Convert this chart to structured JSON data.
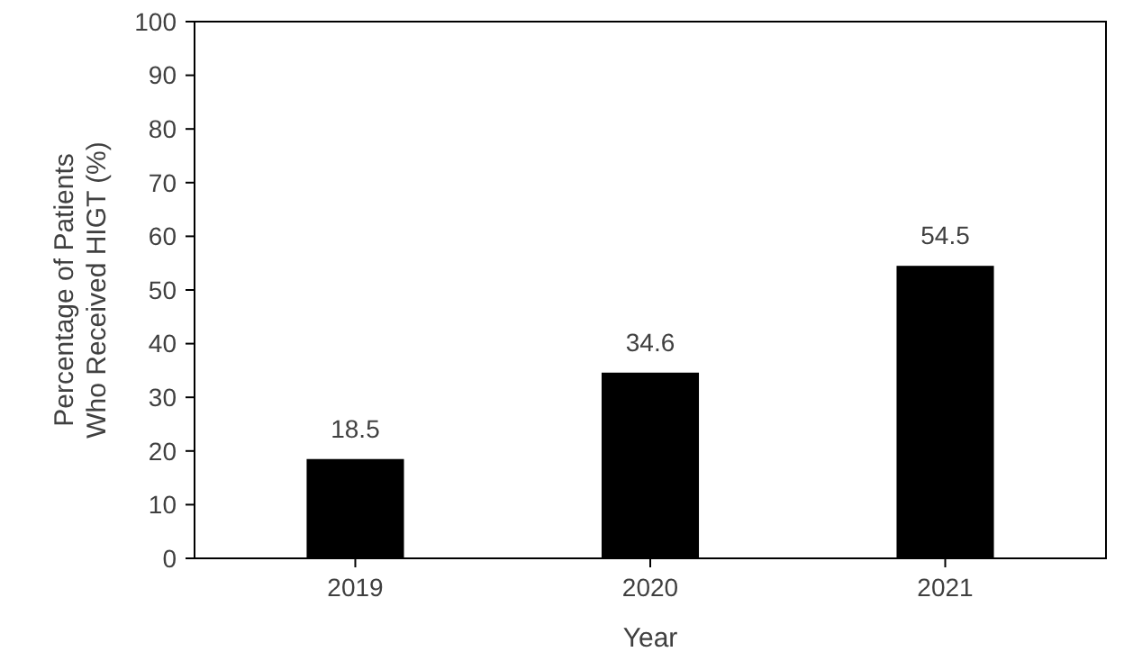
{
  "chart_data": {
    "type": "bar",
    "xlabel": "Year",
    "ylabel": "Percentage of Patients Who Received HIGT (%)",
    "categories": [
      "2019",
      "2020",
      "2021"
    ],
    "values": [
      18.5,
      34.6,
      54.5
    ],
    "color": "#000000",
    "data_labels": true,
    "ylim": [
      0,
      100
    ],
    "yticks": [
      0,
      10,
      20,
      30,
      40,
      50,
      60,
      70,
      80,
      90,
      100
    ],
    "grid": false
  }
}
